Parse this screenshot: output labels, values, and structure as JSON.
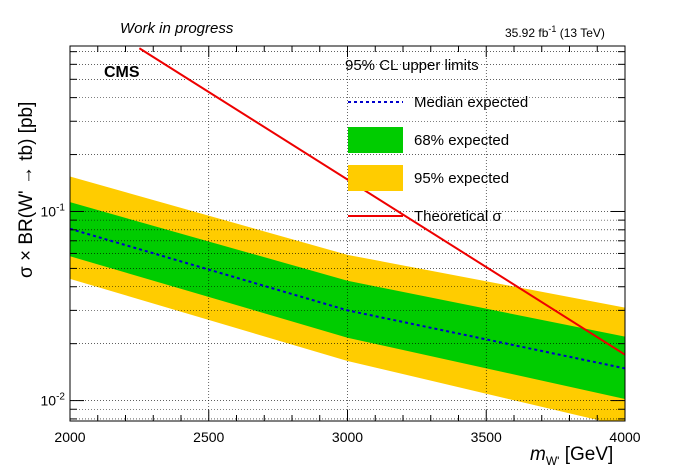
{
  "header": {
    "status": "Work in progress",
    "lumi_value": "35.92 fb",
    "lumi_exp": "-1",
    "lumi_energy": "(13 TeV)",
    "experiment": "CMS"
  },
  "chart_data": {
    "type": "line",
    "title": "",
    "xlabel_main": "m",
    "xlabel_sub": "W'",
    "xlabel_unit": "[GeV]",
    "ylabel": "σ × BR(W' → tb) [pb]",
    "xlim": [
      2000,
      4000
    ],
    "ylim": [
      0.0078,
      0.75
    ],
    "yscale": "log",
    "grid": true,
    "legend_placement": "top-right",
    "x_ticks": [
      "2000",
      "2500",
      "3000",
      "3500",
      "4000"
    ],
    "y_ticks": [
      {
        "value": 0.1,
        "base": "10",
        "exp": "-1"
      },
      {
        "value": 0.01,
        "base": "10",
        "exp": "-2"
      }
    ],
    "legend_title": "95% CL upper limits",
    "legend": [
      "Median expected",
      "68% expected",
      "95% expected",
      "Theoretical σ"
    ],
    "x": [
      2000,
      3000,
      4000
    ],
    "series": [
      {
        "name": "Median expected",
        "values": [
          0.081,
          0.03,
          0.0148
        ],
        "color": "#0000cc",
        "style": "dashed"
      },
      {
        "name": "68% expected",
        "lower": [
          0.058,
          0.0215,
          0.0102
        ],
        "upper": [
          0.112,
          0.043,
          0.0218
        ],
        "color": "#00cc00",
        "style": "band"
      },
      {
        "name": "95% expected",
        "lower": [
          0.044,
          0.0162,
          0.0073
        ],
        "upper": [
          0.153,
          0.059,
          0.031
        ],
        "color": "#ffcc00",
        "style": "band"
      },
      {
        "name": "Theoretical σ",
        "x": [
          2250,
          4000
        ],
        "values": [
          0.73,
          0.0175
        ],
        "color": "#ee0000",
        "style": "solid"
      }
    ]
  }
}
